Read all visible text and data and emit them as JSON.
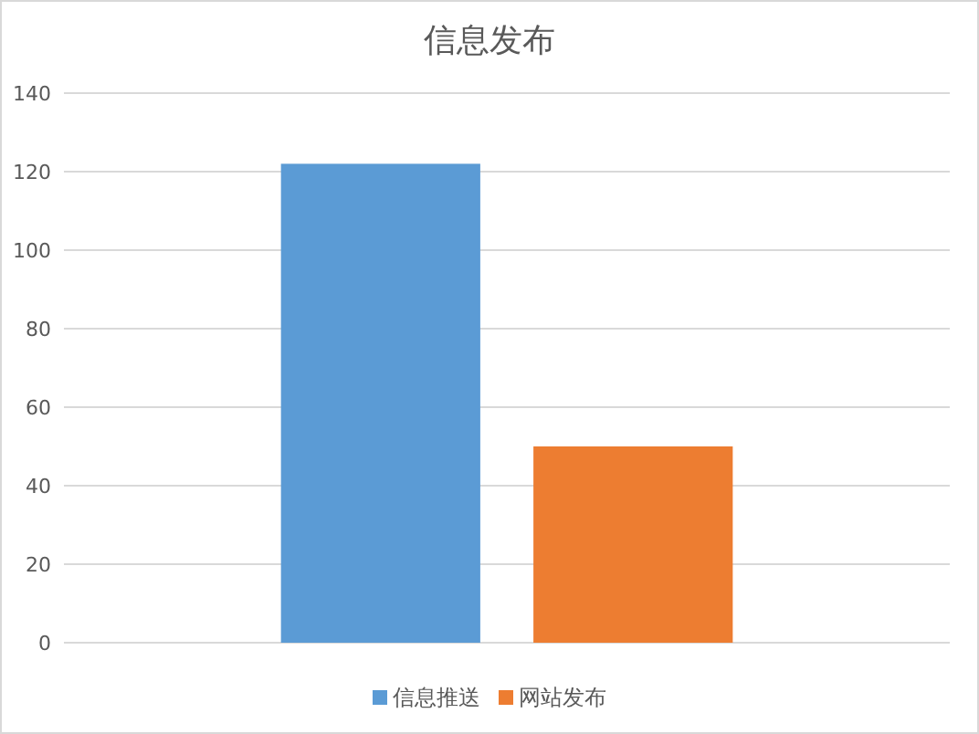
{
  "chart_data": {
    "type": "bar",
    "title": "信息发布",
    "categories": [
      null
    ],
    "series": [
      {
        "name": "信息推送",
        "color": "#5b9bd5",
        "values": [
          122
        ]
      },
      {
        "name": "网站发布",
        "color": "#ed7d31",
        "values": [
          50
        ]
      }
    ],
    "ylim": [
      0,
      140
    ],
    "yticks": [
      0,
      20,
      40,
      60,
      80,
      100,
      120,
      140
    ],
    "grid": "y",
    "legend": "bottom"
  }
}
